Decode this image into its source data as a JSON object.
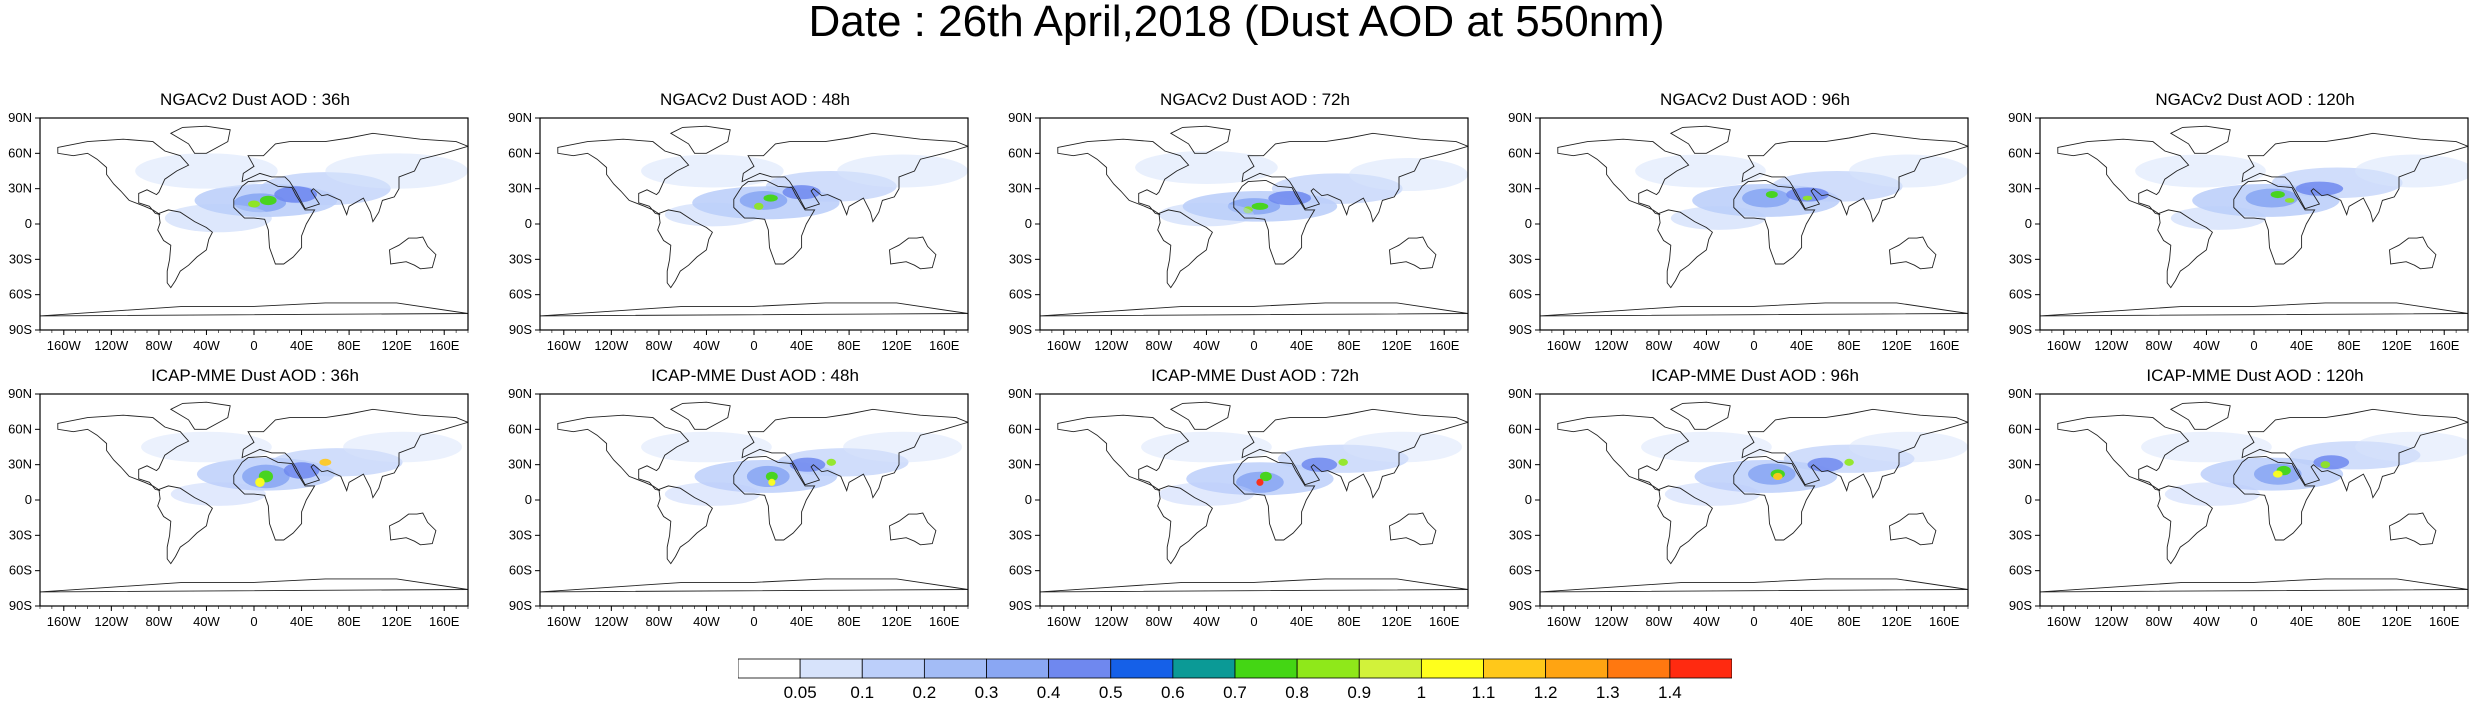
{
  "figure": {
    "title": "Date : 26th April,2018 (Dust AOD at 550nm)"
  },
  "axes": {
    "lat_ticks": [
      "90N",
      "60N",
      "30N",
      "0",
      "30S",
      "60S",
      "90S"
    ],
    "lon_ticks": [
      "160W",
      "120W",
      "80W",
      "40W",
      "0",
      "40E",
      "80E",
      "120E",
      "160E"
    ]
  },
  "panels": [
    {
      "title": "NGACv2 Dust AOD : 36h"
    },
    {
      "title": "NGACv2 Dust AOD : 48h"
    },
    {
      "title": "NGACv2 Dust AOD : 72h"
    },
    {
      "title": "NGACv2 Dust AOD : 96h"
    },
    {
      "title": "NGACv2 Dust AOD : 120h"
    },
    {
      "title": "ICAP-MME Dust AOD : 36h"
    },
    {
      "title": "ICAP-MME Dust AOD : 48h"
    },
    {
      "title": "ICAP-MME Dust AOD : 72h"
    },
    {
      "title": "ICAP-MME Dust AOD : 96h"
    },
    {
      "title": "ICAP-MME Dust AOD : 120h"
    }
  ],
  "colorbar": {
    "labels": [
      "0.05",
      "0.1",
      "0.2",
      "0.3",
      "0.4",
      "0.5",
      "0.6",
      "0.7",
      "0.8",
      "0.9",
      "1",
      "1.1",
      "1.2",
      "1.3",
      "1.4"
    ],
    "colors": [
      "#ffffff",
      "#d7e3fb",
      "#bccffa",
      "#a3bcf6",
      "#8aa7f3",
      "#6f88ef",
      "#1560e8",
      "#0b9a96",
      "#44d614",
      "#8fe81a",
      "#d2f23a",
      "#ffff1c",
      "#ffc81a",
      "#ffa412",
      "#ff7810",
      "#ff2a10"
    ]
  }
}
